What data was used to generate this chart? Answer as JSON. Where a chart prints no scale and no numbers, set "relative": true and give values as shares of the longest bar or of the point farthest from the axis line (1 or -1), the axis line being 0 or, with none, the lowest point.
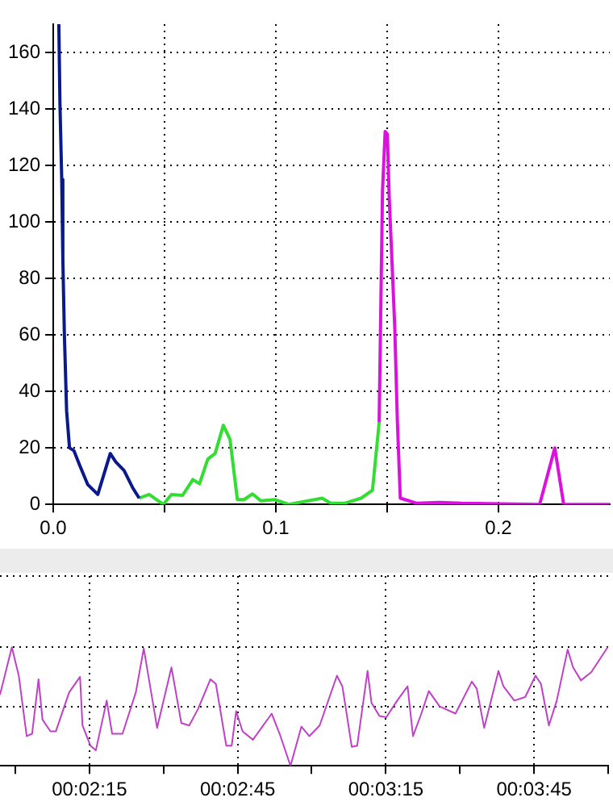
{
  "chart_data": [
    {
      "type": "line",
      "xlim": [
        0,
        0.25
      ],
      "ylim": [
        0,
        170
      ],
      "xticks": [
        {
          "value": 0,
          "label": "0.0"
        },
        {
          "value": 0.05,
          "label": null
        },
        {
          "value": 0.1,
          "label": "0.1"
        },
        {
          "value": 0.15,
          "label": null
        },
        {
          "value": 0.2,
          "label": "0.2"
        }
      ],
      "yticks": [
        0,
        20,
        40,
        60,
        80,
        100,
        120,
        140,
        160
      ],
      "grid": true,
      "legend": false,
      "marker": "none",
      "line_style": "solid",
      "series": [
        {
          "color": "#0a1a8c",
          "x": [
            0.0025,
            0.003,
            0.0038,
            0.0043,
            0.005,
            0.006,
            0.0073,
            0.0093,
            0.0118,
            0.0155,
            0.02,
            0.0256,
            0.0281,
            0.0318,
            0.0356,
            0.0386
          ],
          "values": [
            170,
            142,
            115,
            87,
            60,
            33,
            20,
            19,
            14,
            7,
            3.5,
            18,
            15,
            12,
            6,
            2.2
          ]
        },
        {
          "color": "#33dd33",
          "x": [
            0.0386,
            0.0431,
            0.0494,
            0.0531,
            0.0581,
            0.0627,
            0.0657,
            0.0694,
            0.0727,
            0.0764,
            0.0794,
            0.0827,
            0.0857,
            0.0895,
            0.0932,
            0.0995,
            0.1058,
            0.1208,
            0.1246,
            0.1308,
            0.1383,
            0.1434,
            0.1464
          ],
          "values": [
            2.2,
            3.5,
            0,
            3.5,
            3.2,
            8.8,
            7.3,
            16,
            18,
            28,
            23,
            1.7,
            1.7,
            3.7,
            1.3,
            1.7,
            0,
            2.2,
            0.4,
            0.4,
            2.2,
            5,
            29
          ]
        },
        {
          "color": "#dd11dd",
          "x": [
            0.1464,
            0.1479,
            0.1491,
            0.1501,
            0.1509,
            0.1521,
            0.1534,
            0.1546,
            0.1559,
            0.1634,
            0.1734,
            0.1835,
            0.2185,
            0.2253,
            0.2293,
            0.25
          ],
          "values": [
            29,
            111,
            132,
            131,
            109,
            87,
            63,
            29,
            2.2,
            0.4,
            0.7,
            0.4,
            0,
            20,
            0,
            0
          ]
        }
      ]
    },
    {
      "type": "line",
      "relative": true,
      "tick_labels": "x",
      "xlim": [
        116.9,
        240
      ],
      "xticks": [
        {
          "value": 120,
          "label": null
        },
        {
          "value": 135,
          "label": "00:02:15"
        },
        {
          "value": 150,
          "label": null
        },
        {
          "value": 165,
          "label": "00:02:45"
        },
        {
          "value": 180,
          "label": null
        },
        {
          "value": 195,
          "label": "00:03:15"
        },
        {
          "value": 210,
          "label": null
        },
        {
          "value": 225,
          "label": "00:03:45"
        },
        {
          "value": 240,
          "label": null
        }
      ],
      "grid": true,
      "legend": false,
      "marker": "none",
      "line_style": "solid",
      "series": [
        {
          "color": "#c040c8",
          "x": [
            116.9,
            119.3,
            120.7,
            122.3,
            123.4,
            124.7,
            125.5,
            127.1,
            128.2,
            130.9,
            133.1,
            133.6,
            135.2,
            136.3,
            138.5,
            139.6,
            141.7,
            144.4,
            146.0,
            148.7,
            151.6,
            153.6,
            155.2,
            157.0,
            159.5,
            160.6,
            162.7,
            163.8,
            164.7,
            166.0,
            168.1,
            171.9,
            173.5,
            175.7,
            177.9,
            179.5,
            181.6,
            185.1,
            186.2,
            188.1,
            189.2,
            191.3,
            192.1,
            193.7,
            195.1,
            197.3,
            199.4,
            200.5,
            202.1,
            203.7,
            205.9,
            209.1,
            212.4,
            213.4,
            214.9,
            217.8,
            218.8,
            221.0,
            223.2,
            225.3,
            226.4,
            228.0,
            229.6,
            231.8,
            232.9,
            234.5,
            236.6,
            239.9
          ],
          "values": [
            0.6,
            1.0,
            0.76,
            0.25,
            0.27,
            0.73,
            0.39,
            0.29,
            0.29,
            0.62,
            0.75,
            0.34,
            0.17,
            0.13,
            0.55,
            0.27,
            0.27,
            0.62,
            0.99,
            0.32,
            0.83,
            0.36,
            0.34,
            0.48,
            0.73,
            0.69,
            0.17,
            0.17,
            0.46,
            0.29,
            0.22,
            0.44,
            0.27,
            0,
            0.33,
            0.25,
            0.34,
            0.76,
            0.67,
            0.16,
            0.17,
            0.8,
            0.53,
            0.42,
            0.41,
            0.55,
            0.67,
            0.25,
            0.43,
            0.63,
            0.5,
            0.44,
            0.71,
            0.65,
            0.32,
            0.8,
            0.67,
            0.55,
            0.58,
            0.76,
            0.69,
            0.34,
            0.55,
            0.98,
            0.83,
            0.72,
            0.79,
            1.0
          ]
        }
      ]
    }
  ]
}
